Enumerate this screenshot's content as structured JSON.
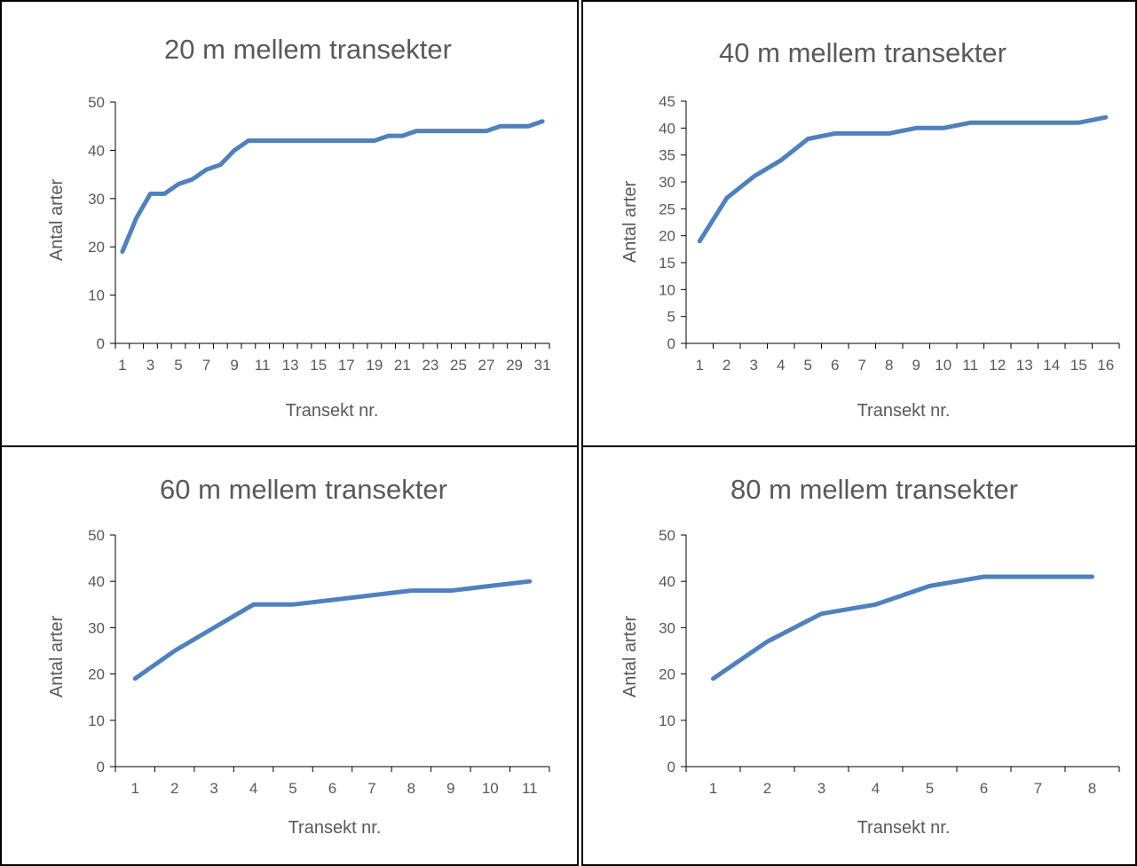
{
  "colors": {
    "series": "#4f81bd",
    "axis": "#000000",
    "text": "#595959"
  },
  "chart_data": [
    {
      "type": "line",
      "title": "20 m mellem transekter",
      "xlabel": "Transekt nr.",
      "ylabel": "Antal arter",
      "ylim": [
        0,
        50
      ],
      "yticks": [
        "0",
        "10",
        "20",
        "30",
        "40",
        "50"
      ],
      "x": [
        1,
        2,
        3,
        4,
        5,
        6,
        7,
        8,
        9,
        10,
        11,
        12,
        13,
        14,
        15,
        16,
        17,
        18,
        19,
        20,
        21,
        22,
        23,
        24,
        25,
        26,
        27,
        28,
        29,
        30,
        31
      ],
      "x_tick_labels": [
        "1",
        "3",
        "5",
        "7",
        "9",
        "11",
        "13",
        "15",
        "17",
        "19",
        "21",
        "23",
        "25",
        "27",
        "29",
        "31"
      ],
      "series": [
        {
          "values": [
            19,
            26,
            31,
            31,
            33,
            34,
            36,
            37,
            40,
            42,
            42,
            42,
            42,
            42,
            42,
            42,
            42,
            42,
            42,
            43,
            43,
            44,
            44,
            44,
            44,
            44,
            44,
            45,
            45,
            45,
            46
          ]
        }
      ],
      "grid": false,
      "legend": "none"
    },
    {
      "type": "line",
      "title": "40 m mellem transekter",
      "xlabel": "Transekt nr.",
      "ylabel": "Antal arter",
      "ylim": [
        0,
        45
      ],
      "yticks": [
        "0",
        "5",
        "10",
        "15",
        "20",
        "25",
        "30",
        "35",
        "40",
        "45"
      ],
      "x": [
        1,
        2,
        3,
        4,
        5,
        6,
        7,
        8,
        9,
        10,
        11,
        12,
        13,
        14,
        15,
        16
      ],
      "x_tick_labels": [
        "1",
        "2",
        "3",
        "4",
        "5",
        "6",
        "7",
        "8",
        "9",
        "10",
        "11",
        "12",
        "13",
        "14",
        "15",
        "16"
      ],
      "series": [
        {
          "values": [
            19,
            27,
            31,
            34,
            38,
            39,
            39,
            39,
            40,
            40,
            41,
            41,
            41,
            41,
            41,
            42
          ]
        }
      ],
      "grid": false,
      "legend": "none"
    },
    {
      "type": "line",
      "title": "60 m mellem transekter",
      "xlabel": "Transekt nr.",
      "ylabel": "Antal arter",
      "ylim": [
        0,
        50
      ],
      "yticks": [
        "0",
        "10",
        "20",
        "30",
        "40",
        "50"
      ],
      "x": [
        1,
        2,
        3,
        4,
        5,
        6,
        7,
        8,
        9,
        10,
        11
      ],
      "x_tick_labels": [
        "1",
        "2",
        "3",
        "4",
        "5",
        "6",
        "7",
        "8",
        "9",
        "10",
        "11"
      ],
      "series": [
        {
          "values": [
            19,
            25,
            30,
            35,
            35,
            36,
            37,
            38,
            38,
            39,
            40
          ]
        }
      ],
      "grid": false,
      "legend": "none"
    },
    {
      "type": "line",
      "title": "80 m mellem transekter",
      "xlabel": "Transekt nr.",
      "ylabel": "Antal arter",
      "ylim": [
        0,
        50
      ],
      "yticks": [
        "0",
        "10",
        "20",
        "30",
        "40",
        "50"
      ],
      "x": [
        1,
        2,
        3,
        4,
        5,
        6,
        7,
        8
      ],
      "x_tick_labels": [
        "1",
        "2",
        "3",
        "4",
        "5",
        "6",
        "7",
        "8"
      ],
      "series": [
        {
          "values": [
            19,
            27,
            33,
            35,
            39,
            41,
            41,
            41
          ]
        }
      ],
      "grid": false,
      "legend": "none"
    }
  ]
}
